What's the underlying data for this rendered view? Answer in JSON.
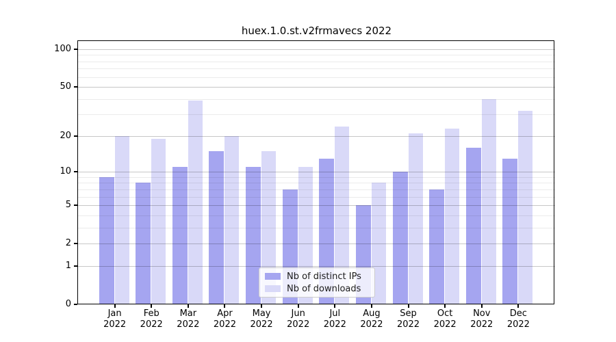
{
  "figure": {
    "title": "huex.1.0.st.v2frmavecs 2022"
  },
  "axes": {
    "ytick_labels": [
      "100",
      "50",
      "20",
      "10",
      "5",
      "2",
      "1",
      "0"
    ],
    "xtick_year": "2022"
  },
  "legend": {
    "items": [
      {
        "label": "Nb of distinct IPs",
        "color": "#a5a5f0"
      },
      {
        "label": "Nb of downloads",
        "color": "#d9d9f8"
      }
    ]
  },
  "chart_data": {
    "type": "bar",
    "title": "huex.1.0.st.v2frmavecs 2022",
    "categories": [
      "Jan 2022",
      "Feb 2022",
      "Mar 2022",
      "Apr 2022",
      "May 2022",
      "Jun 2022",
      "Jul 2022",
      "Aug 2022",
      "Sep 2022",
      "Oct 2022",
      "Nov 2022",
      "Dec 2022"
    ],
    "series": [
      {
        "name": "Nb of distinct IPs",
        "color": "#a5a5f0",
        "values": [
          9,
          8,
          11,
          15,
          11,
          7,
          13,
          5,
          10,
          7,
          16,
          13
        ]
      },
      {
        "name": "Nb of downloads",
        "color": "#d9d9f8",
        "values": [
          20,
          19,
          39,
          20,
          15,
          11,
          24,
          8,
          21,
          23,
          40,
          32
        ]
      }
    ],
    "xlabel": "",
    "ylabel": "",
    "yscale": "log1p",
    "ylim": [
      0,
      116
    ],
    "yticks": [
      100,
      50,
      20,
      10,
      5,
      2,
      1,
      0
    ],
    "grid_major": [
      1,
      2,
      5,
      10,
      20,
      50,
      100
    ],
    "grid_minor": [
      3,
      4,
      6,
      7,
      8,
      9,
      30,
      40,
      60,
      70,
      80,
      90
    ],
    "grid": true,
    "legend_position": "lower center"
  }
}
